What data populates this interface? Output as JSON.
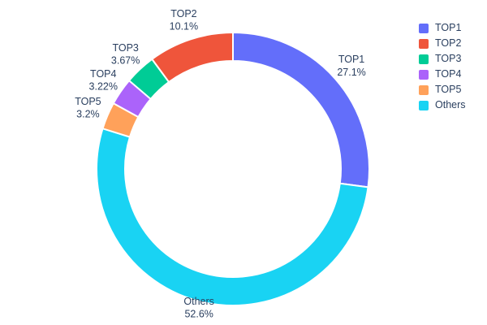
{
  "chart_data": {
    "type": "pie",
    "hole": 0.79,
    "title": "",
    "labels": [
      "TOP1",
      "TOP2",
      "TOP3",
      "TOP4",
      "TOP5",
      "Others"
    ],
    "values": [
      27.1,
      10.1,
      3.67,
      3.22,
      3.2,
      52.6
    ],
    "percent_labels": [
      "27.1%",
      "10.1%",
      "3.67%",
      "3.22%",
      "3.2%",
      "52.6%"
    ],
    "colors": [
      "#636efa",
      "#ef553b",
      "#00cc96",
      "#ab63fa",
      "#ffa15a",
      "#19d3f3"
    ],
    "clockwise_order_from_top": [
      "TOP1",
      "Others",
      "TOP5",
      "TOP4",
      "TOP3",
      "TOP2"
    ],
    "legend": {
      "position": "right",
      "items": [
        "TOP1",
        "TOP2",
        "TOP3",
        "TOP4",
        "TOP5",
        "Others"
      ]
    },
    "text_color": "#2a3f5f",
    "background": "#ffffff",
    "grid": false
  }
}
